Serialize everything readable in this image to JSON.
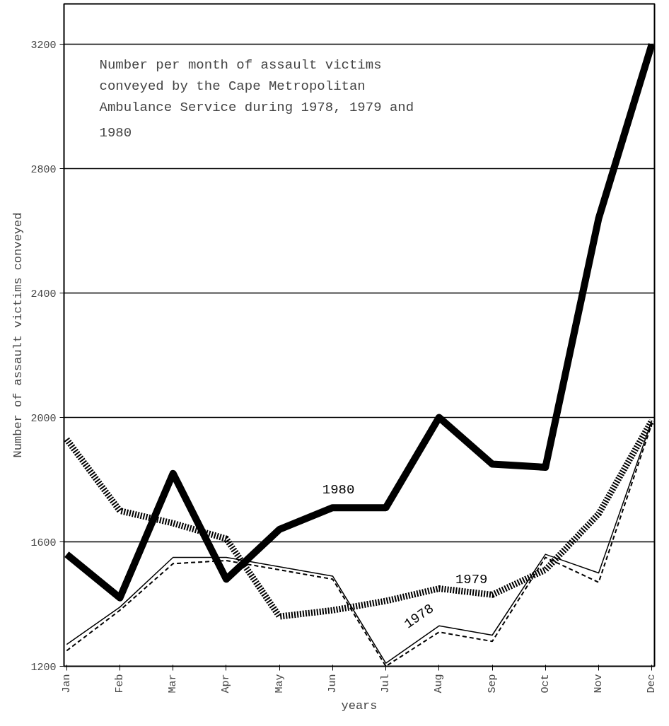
{
  "chart_data": {
    "type": "line",
    "title": "Number per month of assault victims conveyed by the Cape Metropolitan Ambulance Service during 1978, 1979 and 1980",
    "ylabel": "Number of assault victims conveyed",
    "xlabel": "years",
    "categories": [
      "Jan",
      "Feb",
      "Mar",
      "Apr",
      "May",
      "Jun",
      "Jul",
      "Aug",
      "Sep",
      "Oct",
      "Nov",
      "Dec"
    ],
    "ylim": [
      1200,
      3330
    ],
    "yticks": [
      1200,
      1600,
      2000,
      2400,
      2800,
      3200
    ],
    "grid": "y",
    "marker": "none",
    "series": [
      {
        "name": "1980",
        "color": "#000000",
        "line_style": "solid",
        "values": [
          1560,
          1420,
          1820,
          1480,
          1640,
          1710,
          1710,
          2000,
          1850,
          1840,
          2640,
          3200
        ]
      },
      {
        "name": "1979",
        "color": "#000000",
        "line_style": "dotted",
        "values": [
          1930,
          1700,
          1660,
          1610,
          1360,
          1380,
          1410,
          1450,
          1430,
          1510,
          1690,
          1990
        ]
      },
      {
        "name": "1978",
        "color": "#000000",
        "line_style": "solid",
        "values": [
          1270,
          1390,
          1550,
          1550,
          1520,
          1490,
          1210,
          1330,
          1300,
          1560,
          1500,
          1990
        ]
      },
      {
        "color": "#000000",
        "line_style": "dashed",
        "values": [
          1250,
          1380,
          1530,
          1540,
          1510,
          1480,
          1200,
          1310,
          1280,
          1550,
          1470,
          1980
        ]
      }
    ]
  }
}
